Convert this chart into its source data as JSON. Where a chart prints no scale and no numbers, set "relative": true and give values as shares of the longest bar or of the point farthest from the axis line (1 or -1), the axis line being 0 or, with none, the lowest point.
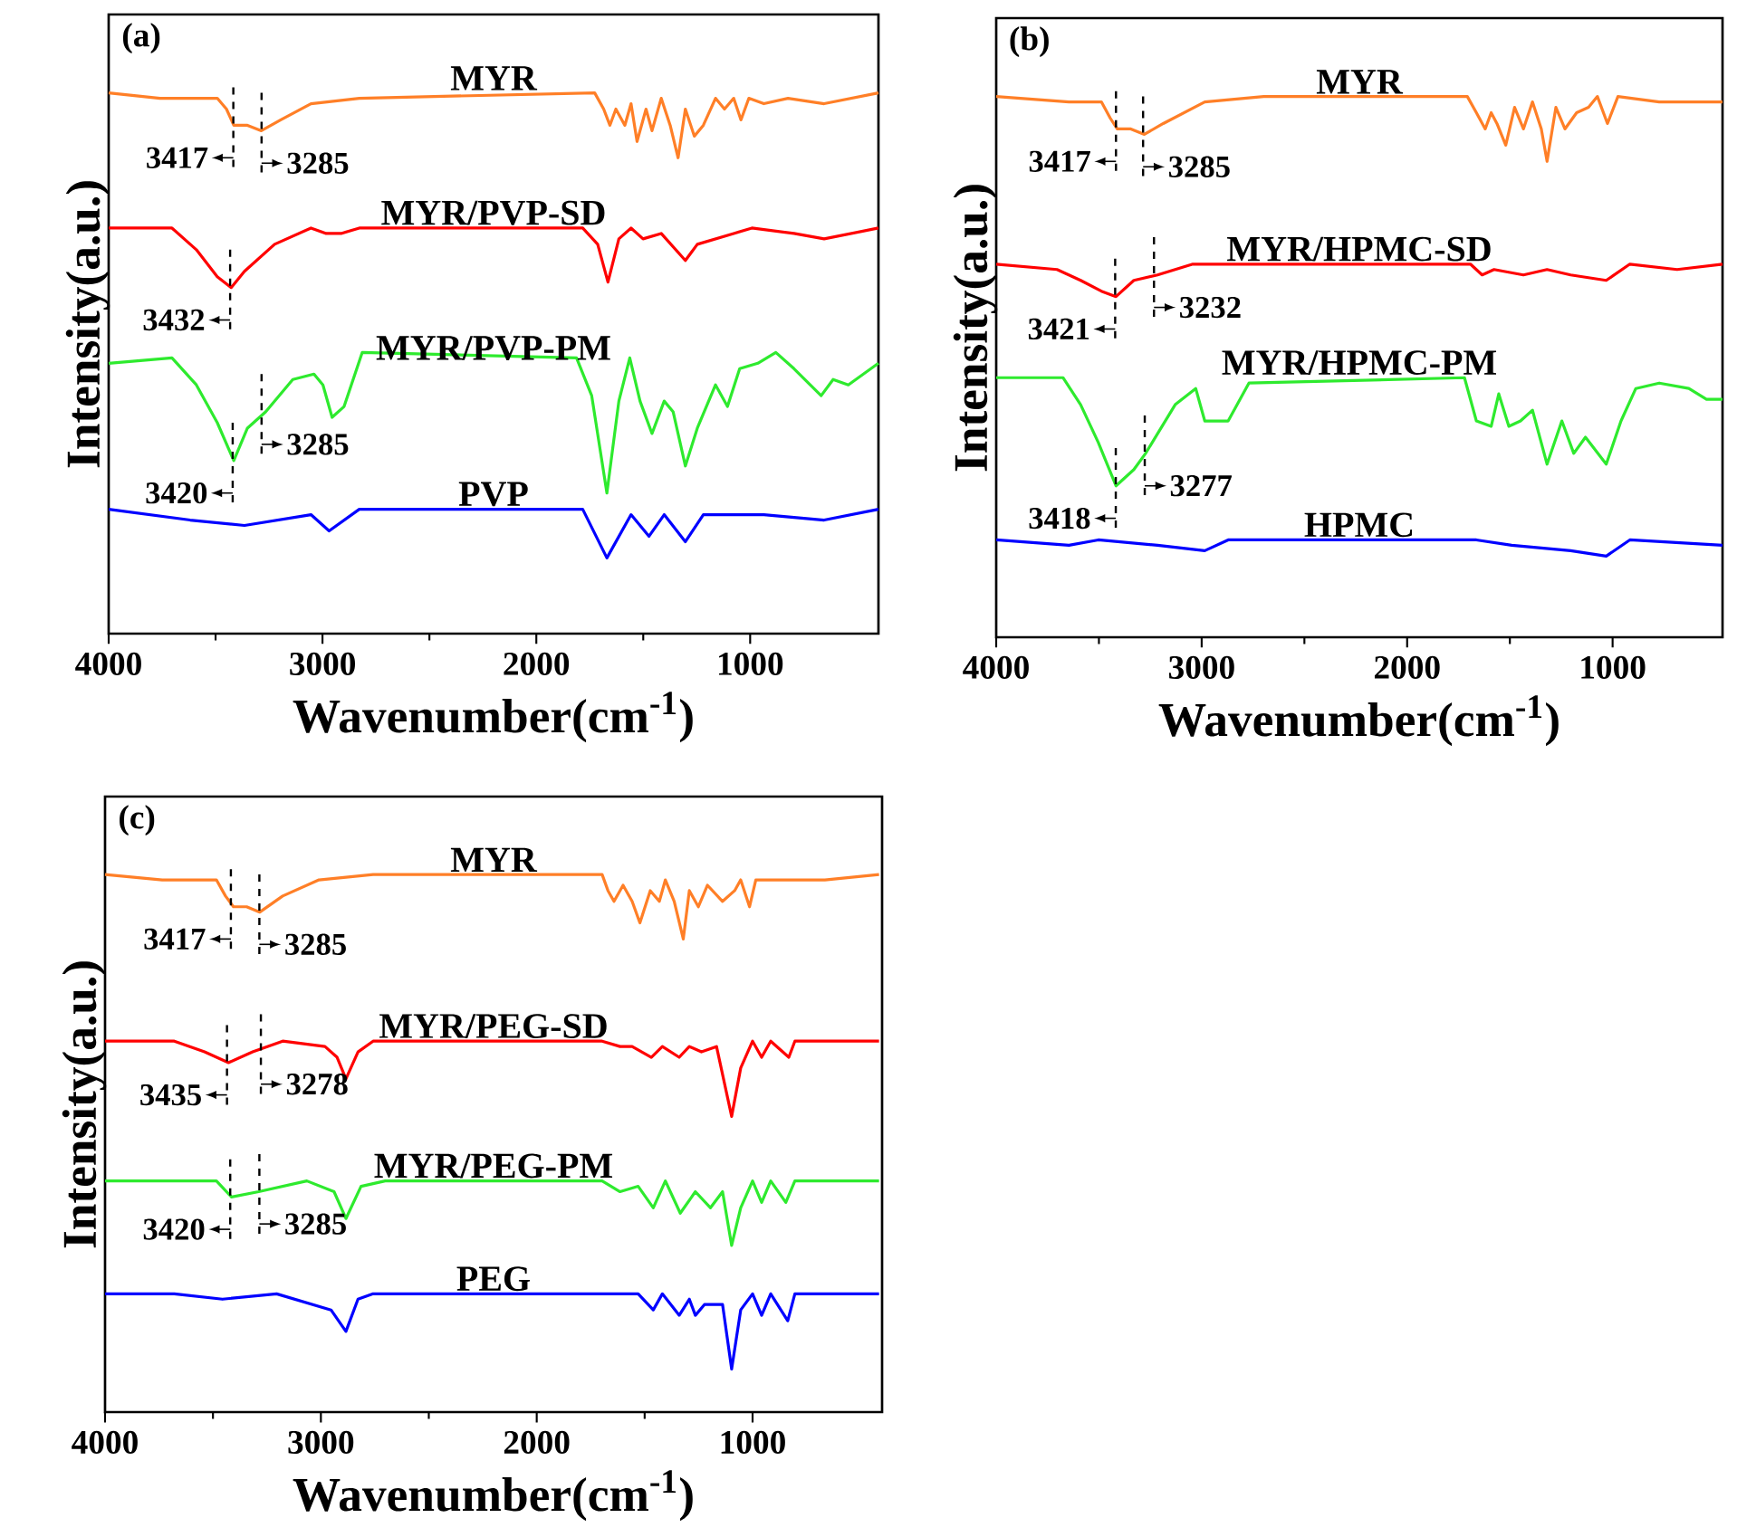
{
  "chart_data": [
    {
      "type": "line",
      "title": "(a)",
      "xlabel": "Wavenumber(cm$^{-1}$)",
      "ylabel": "Intensity(a.u.)",
      "relative": true,
      "tick_labels": "x",
      "xlim": [
        4000,
        400
      ],
      "xticks": [
        4000,
        3000,
        2000,
        1000
      ],
      "series": [
        {
          "name": "MYR",
          "color": "#ff7f27",
          "x": [
            4000,
            3760,
            3492,
            3449,
            3415,
            3351,
            3286,
            3195,
            3054,
            2828,
            1727,
            1685,
            1656,
            1628,
            1586,
            1557,
            1529,
            1487,
            1459,
            1416,
            1374,
            1337,
            1303,
            1261,
            1219,
            1162,
            1120,
            1077,
            1043,
            1006,
            936,
            823,
            654,
            400
          ],
          "values": [
            1.0,
            0.99,
            0.99,
            0.97,
            0.94,
            0.94,
            0.93,
            0.95,
            0.98,
            0.99,
            1.0,
            0.97,
            0.94,
            0.97,
            0.94,
            0.98,
            0.91,
            0.97,
            0.93,
            0.99,
            0.94,
            0.88,
            0.97,
            0.92,
            0.94,
            0.99,
            0.97,
            0.99,
            0.95,
            0.99,
            0.98,
            0.99,
            0.98,
            1.0
          ]
        },
        {
          "name": "MYR/PVP-SD",
          "color": "#ff0000",
          "x": [
            4000,
            3704,
            3590,
            3492,
            3427,
            3365,
            3224,
            3054,
            2983,
            2913,
            2828,
            1783,
            1713,
            1665,
            1614,
            1557,
            1501,
            1416,
            1303,
            1247,
            1077,
            992,
            795,
            654,
            400
          ],
          "values": [
            0.75,
            0.75,
            0.71,
            0.66,
            0.64,
            0.67,
            0.72,
            0.75,
            0.74,
            0.74,
            0.75,
            0.75,
            0.72,
            0.65,
            0.73,
            0.75,
            0.73,
            0.74,
            0.69,
            0.72,
            0.74,
            0.75,
            0.74,
            0.73,
            0.75
          ]
        },
        {
          "name": "MYR/PVP-PM",
          "color": "#2eea2e",
          "x": [
            4000,
            3704,
            3590,
            3492,
            3415,
            3351,
            3266,
            3139,
            3040,
            2998,
            2955,
            2899,
            2814,
            1812,
            1741,
            1670,
            1614,
            1563,
            1515,
            1459,
            1402,
            1360,
            1303,
            1247,
            1162,
            1106,
            1049,
            964,
            880,
            795,
            668,
            612,
            541,
            400
          ],
          "values": [
            0.5,
            0.51,
            0.46,
            0.39,
            0.32,
            0.38,
            0.41,
            0.47,
            0.48,
            0.46,
            0.4,
            0.42,
            0.52,
            0.51,
            0.44,
            0.26,
            0.43,
            0.51,
            0.43,
            0.37,
            0.43,
            0.41,
            0.31,
            0.38,
            0.46,
            0.42,
            0.49,
            0.5,
            0.52,
            0.49,
            0.44,
            0.47,
            0.46,
            0.5
          ]
        },
        {
          "name": "PVP",
          "color": "#0000ff",
          "x": [
            4000,
            3619,
            3365,
            3054,
            2969,
            2828,
            1783,
            1670,
            1557,
            1473,
            1402,
            1303,
            1219,
            936,
            654,
            400
          ],
          "values": [
            0.23,
            0.21,
            0.2,
            0.22,
            0.19,
            0.23,
            0.23,
            0.14,
            0.22,
            0.18,
            0.22,
            0.17,
            0.22,
            0.22,
            0.21,
            0.23
          ]
        }
      ],
      "annotations": [
        {
          "text": "3417",
          "x": 3417,
          "y": 0.94
        },
        {
          "text": "3285",
          "x": 3285,
          "y": 0.93
        },
        {
          "text": "3432",
          "x": 3432,
          "y": 0.64
        },
        {
          "text": "3420",
          "x": 3420,
          "y": 0.32
        },
        {
          "text": "3285",
          "x": 3285,
          "y": 0.41
        }
      ]
    },
    {
      "type": "line",
      "title": "(b)",
      "xlabel": "Wavenumber(cm$^{-1}$)",
      "ylabel": "Intensity(a.u.)",
      "relative": true,
      "tick_labels": "x",
      "xlim": [
        4000,
        465
      ],
      "xticks": [
        4000,
        3000,
        2000,
        1000
      ],
      "series": [
        {
          "name": "MYR",
          "color": "#ff7f27",
          "x": [
            4000,
            3646,
            3488,
            3445,
            3411,
            3345,
            3279,
            3187,
            2985,
            2698,
            1707,
            1663,
            1620,
            1591,
            1563,
            1520,
            1477,
            1434,
            1390,
            1347,
            1319,
            1276,
            1232,
            1175,
            1117,
            1074,
            1025,
            974,
            773,
            465
          ],
          "values": [
            1.0,
            0.99,
            0.99,
            0.96,
            0.94,
            0.94,
            0.93,
            0.95,
            0.99,
            1.0,
            1.0,
            0.97,
            0.94,
            0.97,
            0.95,
            0.91,
            0.98,
            0.94,
            0.99,
            0.94,
            0.88,
            0.98,
            0.94,
            0.97,
            0.98,
            1.0,
            0.95,
            1.0,
            0.99,
            0.99
          ]
        },
        {
          "name": "MYR/HPMC-SD",
          "color": "#ff0000",
          "x": [
            4000,
            3704,
            3589,
            3488,
            3417,
            3330,
            3215,
            3043,
            2698,
            1692,
            1635,
            1577,
            1434,
            1319,
            1204,
            1031,
            916,
            686,
            465
          ],
          "values": [
            0.69,
            0.68,
            0.66,
            0.64,
            0.63,
            0.66,
            0.67,
            0.69,
            0.69,
            0.69,
            0.67,
            0.68,
            0.67,
            0.68,
            0.67,
            0.66,
            0.69,
            0.68,
            0.69
          ]
        },
        {
          "name": "MYR/HPMC-PM",
          "color": "#2eea2e",
          "x": [
            4000,
            3675,
            3589,
            3503,
            3417,
            3330,
            3273,
            3129,
            3029,
            2985,
            2928,
            2871,
            2770,
            1721,
            1663,
            1591,
            1554,
            1505,
            1448,
            1390,
            1319,
            1247,
            1189,
            1132,
            1031,
            959,
            887,
            773,
            629,
            543,
            465
          ],
          "values": [
            0.48,
            0.48,
            0.43,
            0.36,
            0.28,
            0.31,
            0.34,
            0.43,
            0.46,
            0.4,
            0.4,
            0.4,
            0.47,
            0.48,
            0.4,
            0.39,
            0.45,
            0.39,
            0.4,
            0.42,
            0.32,
            0.4,
            0.34,
            0.37,
            0.32,
            0.4,
            0.46,
            0.47,
            0.46,
            0.44,
            0.44
          ]
        },
        {
          "name": "HPMC",
          "color": "#0000ff",
          "x": [
            4000,
            3646,
            3503,
            3215,
            2985,
            2871,
            1663,
            1491,
            1204,
            1031,
            916,
            465
          ],
          "values": [
            0.18,
            0.17,
            0.18,
            0.17,
            0.16,
            0.18,
            0.18,
            0.17,
            0.16,
            0.15,
            0.18,
            0.17
          ]
        }
      ],
      "annotations": [
        {
          "text": "3417",
          "x": 3417,
          "y": 0.94
        },
        {
          "text": "3285",
          "x": 3285,
          "y": 0.93
        },
        {
          "text": "3421",
          "x": 3421,
          "y": 0.63
        },
        {
          "text": "3232",
          "x": 3232,
          "y": 0.67
        },
        {
          "text": "3418",
          "x": 3418,
          "y": 0.28
        },
        {
          "text": "3277",
          "x": 3277,
          "y": 0.34
        }
      ]
    },
    {
      "type": "line",
      "title": "(c)",
      "xlabel": "Wavenumber(cm$^{-1}$)",
      "ylabel": "Intensity(a.u.)",
      "relative": true,
      "tick_labels": "x",
      "xlim": [
        4000,
        400
      ],
      "xticks": [
        4000,
        3000,
        2000,
        1000
      ],
      "series": [
        {
          "name": "MYR",
          "color": "#ff7f27",
          "x": [
            4000,
            3735,
            3484,
            3442,
            3405,
            3344,
            3283,
            3177,
            3009,
            2758,
            1697,
            1670,
            1642,
            1600,
            1558,
            1522,
            1474,
            1432,
            1404,
            1363,
            1321,
            1293,
            1251,
            1209,
            1139,
            1083,
            1055,
            1014,
            985,
            832,
            665,
            414
          ],
          "values": [
            1.0,
            0.99,
            0.99,
            0.96,
            0.94,
            0.94,
            0.93,
            0.96,
            0.99,
            1.0,
            1.0,
            0.97,
            0.95,
            0.98,
            0.95,
            0.91,
            0.97,
            0.95,
            0.99,
            0.95,
            0.88,
            0.97,
            0.94,
            0.98,
            0.95,
            0.97,
            0.99,
            0.94,
            0.99,
            0.99,
            0.99,
            1.0
          ]
        },
        {
          "name": "MYR/PEG-SD",
          "color": "#ff0000",
          "x": [
            4000,
            3679,
            3539,
            3428,
            3316,
            3177,
            2981,
            2925,
            2884,
            2828,
            2758,
            1697,
            1614,
            1558,
            1469,
            1418,
            1340,
            1293,
            1237,
            1167,
            1097,
            1055,
            1000,
            958,
            916,
            832,
            804,
            414
          ],
          "values": [
            0.69,
            0.69,
            0.67,
            0.65,
            0.67,
            0.69,
            0.68,
            0.66,
            0.62,
            0.67,
            0.69,
            0.69,
            0.68,
            0.68,
            0.66,
            0.68,
            0.66,
            0.68,
            0.67,
            0.68,
            0.55,
            0.64,
            0.69,
            0.66,
            0.69,
            0.66,
            0.69,
            0.69
          ]
        },
        {
          "name": "MYR/PEG-PM",
          "color": "#2eea2e",
          "x": [
            4000,
            3484,
            3414,
            3288,
            3065,
            2939,
            2884,
            2814,
            2702,
            1697,
            1614,
            1530,
            1460,
            1404,
            1335,
            1265,
            1195,
            1139,
            1097,
            1055,
            1000,
            958,
            916,
            846,
            804,
            414
          ],
          "values": [
            0.43,
            0.43,
            0.4,
            0.41,
            0.43,
            0.41,
            0.36,
            0.42,
            0.43,
            0.43,
            0.41,
            0.42,
            0.38,
            0.43,
            0.37,
            0.41,
            0.38,
            0.41,
            0.31,
            0.38,
            0.43,
            0.39,
            0.43,
            0.39,
            0.43,
            0.43
          ]
        },
        {
          "name": "PEG",
          "color": "#0000ff",
          "x": [
            4000,
            3679,
            3456,
            3205,
            2953,
            2884,
            2828,
            2758,
            1530,
            1460,
            1418,
            1340,
            1293,
            1265,
            1223,
            1139,
            1097,
            1055,
            1000,
            958,
            916,
            837,
            804,
            414
          ],
          "values": [
            0.22,
            0.22,
            0.21,
            0.22,
            0.19,
            0.15,
            0.21,
            0.22,
            0.22,
            0.19,
            0.22,
            0.18,
            0.21,
            0.18,
            0.2,
            0.2,
            0.08,
            0.19,
            0.22,
            0.18,
            0.22,
            0.17,
            0.22,
            0.22
          ]
        }
      ],
      "annotations": [
        {
          "text": "3417",
          "x": 3417,
          "y": 0.94
        },
        {
          "text": "3285",
          "x": 3285,
          "y": 0.93
        },
        {
          "text": "3435",
          "x": 3435,
          "y": 0.65
        },
        {
          "text": "3278",
          "x": 3278,
          "y": 0.67
        },
        {
          "text": "3420",
          "x": 3420,
          "y": 0.4
        },
        {
          "text": "3285",
          "x": 3285,
          "y": 0.41
        }
      ]
    }
  ]
}
